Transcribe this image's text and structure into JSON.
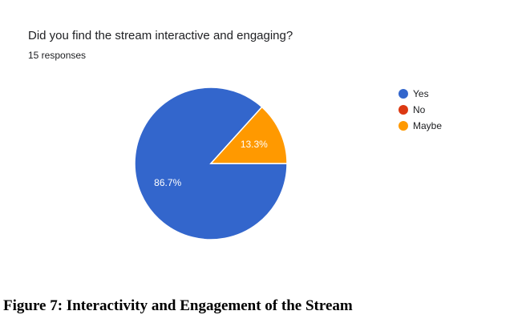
{
  "form": {
    "question": "Did you find the stream interactive and engaging?",
    "responses": "15 responses"
  },
  "caption": "Figure 7: Interactivity and Engagement of the Stream",
  "chart_data": {
    "type": "pie",
    "categories": [
      "Yes",
      "No",
      "Maybe"
    ],
    "values": [
      86.7,
      0,
      13.3
    ],
    "labels": [
      "86.7%",
      "",
      "13.3%"
    ],
    "colors": [
      "#3366cc",
      "#dc3912",
      "#ff9900"
    ],
    "legend_position": "right",
    "legend": [
      "Yes",
      "No",
      "Maybe"
    ]
  }
}
